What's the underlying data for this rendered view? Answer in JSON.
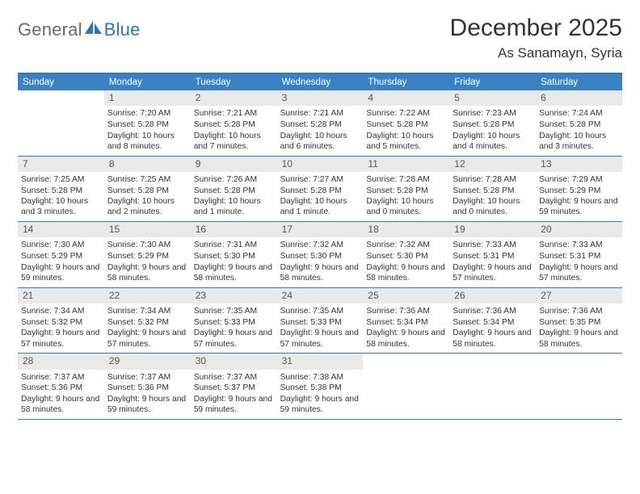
{
  "logo": {
    "general": "General",
    "blue": "Blue"
  },
  "header": {
    "title": "December 2025",
    "location": "As Sanamayn, Syria"
  },
  "colors": {
    "header_bg": "#3b82c4",
    "border": "#3578b8",
    "daynum_bg": "#e9e9e9",
    "text": "#333333",
    "logo_gray": "#6b6b6b",
    "logo_blue": "#2f75b5"
  },
  "days_of_week": [
    "Sunday",
    "Monday",
    "Tuesday",
    "Wednesday",
    "Thursday",
    "Friday",
    "Saturday"
  ],
  "weeks": [
    [
      null,
      {
        "num": "1",
        "sunrise": "Sunrise: 7:20 AM",
        "sunset": "Sunset: 5:28 PM",
        "daylight": "Daylight: 10 hours and 8 minutes."
      },
      {
        "num": "2",
        "sunrise": "Sunrise: 7:21 AM",
        "sunset": "Sunset: 5:28 PM",
        "daylight": "Daylight: 10 hours and 7 minutes."
      },
      {
        "num": "3",
        "sunrise": "Sunrise: 7:21 AM",
        "sunset": "Sunset: 5:28 PM",
        "daylight": "Daylight: 10 hours and 6 minutes."
      },
      {
        "num": "4",
        "sunrise": "Sunrise: 7:22 AM",
        "sunset": "Sunset: 5:28 PM",
        "daylight": "Daylight: 10 hours and 5 minutes."
      },
      {
        "num": "5",
        "sunrise": "Sunrise: 7:23 AM",
        "sunset": "Sunset: 5:28 PM",
        "daylight": "Daylight: 10 hours and 4 minutes."
      },
      {
        "num": "6",
        "sunrise": "Sunrise: 7:24 AM",
        "sunset": "Sunset: 5:28 PM",
        "daylight": "Daylight: 10 hours and 3 minutes."
      }
    ],
    [
      {
        "num": "7",
        "sunrise": "Sunrise: 7:25 AM",
        "sunset": "Sunset: 5:28 PM",
        "daylight": "Daylight: 10 hours and 3 minutes."
      },
      {
        "num": "8",
        "sunrise": "Sunrise: 7:25 AM",
        "sunset": "Sunset: 5:28 PM",
        "daylight": "Daylight: 10 hours and 2 minutes."
      },
      {
        "num": "9",
        "sunrise": "Sunrise: 7:26 AM",
        "sunset": "Sunset: 5:28 PM",
        "daylight": "Daylight: 10 hours and 1 minute."
      },
      {
        "num": "10",
        "sunrise": "Sunrise: 7:27 AM",
        "sunset": "Sunset: 5:28 PM",
        "daylight": "Daylight: 10 hours and 1 minute."
      },
      {
        "num": "11",
        "sunrise": "Sunrise: 7:28 AM",
        "sunset": "Sunset: 5:28 PM",
        "daylight": "Daylight: 10 hours and 0 minutes."
      },
      {
        "num": "12",
        "sunrise": "Sunrise: 7:28 AM",
        "sunset": "Sunset: 5:28 PM",
        "daylight": "Daylight: 10 hours and 0 minutes."
      },
      {
        "num": "13",
        "sunrise": "Sunrise: 7:29 AM",
        "sunset": "Sunset: 5:29 PM",
        "daylight": "Daylight: 9 hours and 59 minutes."
      }
    ],
    [
      {
        "num": "14",
        "sunrise": "Sunrise: 7:30 AM",
        "sunset": "Sunset: 5:29 PM",
        "daylight": "Daylight: 9 hours and 59 minutes."
      },
      {
        "num": "15",
        "sunrise": "Sunrise: 7:30 AM",
        "sunset": "Sunset: 5:29 PM",
        "daylight": "Daylight: 9 hours and 58 minutes."
      },
      {
        "num": "16",
        "sunrise": "Sunrise: 7:31 AM",
        "sunset": "Sunset: 5:30 PM",
        "daylight": "Daylight: 9 hours and 58 minutes."
      },
      {
        "num": "17",
        "sunrise": "Sunrise: 7:32 AM",
        "sunset": "Sunset: 5:30 PM",
        "daylight": "Daylight: 9 hours and 58 minutes."
      },
      {
        "num": "18",
        "sunrise": "Sunrise: 7:32 AM",
        "sunset": "Sunset: 5:30 PM",
        "daylight": "Daylight: 9 hours and 58 minutes."
      },
      {
        "num": "19",
        "sunrise": "Sunrise: 7:33 AM",
        "sunset": "Sunset: 5:31 PM",
        "daylight": "Daylight: 9 hours and 57 minutes."
      },
      {
        "num": "20",
        "sunrise": "Sunrise: 7:33 AM",
        "sunset": "Sunset: 5:31 PM",
        "daylight": "Daylight: 9 hours and 57 minutes."
      }
    ],
    [
      {
        "num": "21",
        "sunrise": "Sunrise: 7:34 AM",
        "sunset": "Sunset: 5:32 PM",
        "daylight": "Daylight: 9 hours and 57 minutes."
      },
      {
        "num": "22",
        "sunrise": "Sunrise: 7:34 AM",
        "sunset": "Sunset: 5:32 PM",
        "daylight": "Daylight: 9 hours and 57 minutes."
      },
      {
        "num": "23",
        "sunrise": "Sunrise: 7:35 AM",
        "sunset": "Sunset: 5:33 PM",
        "daylight": "Daylight: 9 hours and 57 minutes."
      },
      {
        "num": "24",
        "sunrise": "Sunrise: 7:35 AM",
        "sunset": "Sunset: 5:33 PM",
        "daylight": "Daylight: 9 hours and 57 minutes."
      },
      {
        "num": "25",
        "sunrise": "Sunrise: 7:36 AM",
        "sunset": "Sunset: 5:34 PM",
        "daylight": "Daylight: 9 hours and 58 minutes."
      },
      {
        "num": "26",
        "sunrise": "Sunrise: 7:36 AM",
        "sunset": "Sunset: 5:34 PM",
        "daylight": "Daylight: 9 hours and 58 minutes."
      },
      {
        "num": "27",
        "sunrise": "Sunrise: 7:36 AM",
        "sunset": "Sunset: 5:35 PM",
        "daylight": "Daylight: 9 hours and 58 minutes."
      }
    ],
    [
      {
        "num": "28",
        "sunrise": "Sunrise: 7:37 AM",
        "sunset": "Sunset: 5:36 PM",
        "daylight": "Daylight: 9 hours and 58 minutes."
      },
      {
        "num": "29",
        "sunrise": "Sunrise: 7:37 AM",
        "sunset": "Sunset: 5:36 PM",
        "daylight": "Daylight: 9 hours and 59 minutes."
      },
      {
        "num": "30",
        "sunrise": "Sunrise: 7:37 AM",
        "sunset": "Sunset: 5:37 PM",
        "daylight": "Daylight: 9 hours and 59 minutes."
      },
      {
        "num": "31",
        "sunrise": "Sunrise: 7:38 AM",
        "sunset": "Sunset: 5:38 PM",
        "daylight": "Daylight: 9 hours and 59 minutes."
      },
      null,
      null,
      null
    ]
  ]
}
